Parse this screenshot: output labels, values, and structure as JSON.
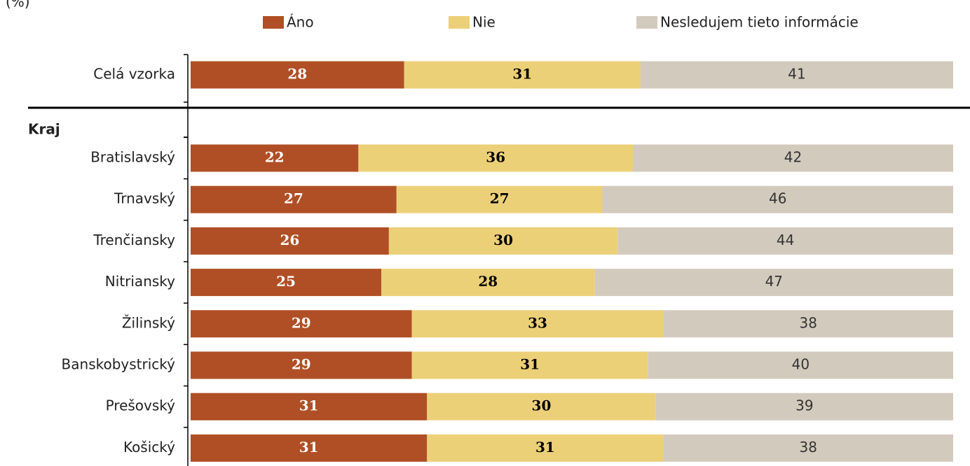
{
  "chart_data": {
    "type": "stacked_barh",
    "subtitle": "(%)",
    "group_label": "Kraj",
    "categories": [
      "Celá vzorka",
      "Bratislavský",
      "Trnavský",
      "Trenčiansky",
      "Nitriansky",
      "Žilinský",
      "Banskobystrický",
      "Prešovský",
      "Košický"
    ],
    "series": [
      {
        "name": "Áno",
        "color": "#b04f25",
        "values": [
          28,
          22,
          27,
          26,
          25,
          29,
          29,
          31,
          31
        ]
      },
      {
        "name": "Nie",
        "color": "#ecd078",
        "values": [
          31,
          36,
          27,
          30,
          28,
          33,
          31,
          30,
          31
        ]
      },
      {
        "name": "Nesledujem tieto informácie",
        "color": "#d3cabe",
        "values": [
          41,
          42,
          46,
          44,
          47,
          38,
          40,
          39,
          38
        ]
      }
    ],
    "xlim": [
      0,
      100
    ],
    "legend": "top"
  }
}
